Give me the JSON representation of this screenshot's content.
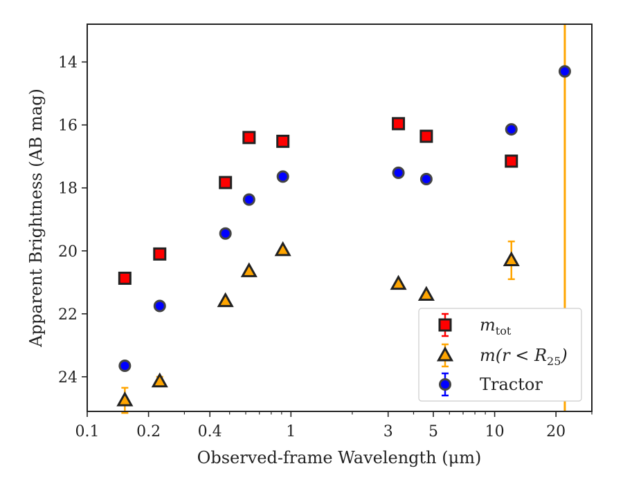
{
  "chart_data": {
    "type": "scatter",
    "x_scale": "log",
    "xlim": [
      0.1,
      30
    ],
    "ylim": [
      12.8,
      25.1
    ],
    "y_inverted": true,
    "grid": false,
    "xlabel": "Observed-frame Wavelength (μm)",
    "ylabel": "Apparent Brightness (AB mag)",
    "x_ticks": [
      {
        "value": 0.1,
        "label": "0.1"
      },
      {
        "value": 0.2,
        "label": "0.2"
      },
      {
        "value": 0.4,
        "label": "0.4"
      },
      {
        "value": 1,
        "label": "1"
      },
      {
        "value": 3,
        "label": "3"
      },
      {
        "value": 5,
        "label": "5"
      },
      {
        "value": 10,
        "label": "10"
      },
      {
        "value": 20,
        "label": "20"
      }
    ],
    "y_ticks": [
      {
        "value": 14,
        "label": "14"
      },
      {
        "value": 16,
        "label": "16"
      },
      {
        "value": 18,
        "label": "18"
      },
      {
        "value": 20,
        "label": "20"
      },
      {
        "value": 22,
        "label": "22"
      },
      {
        "value": 24,
        "label": "24"
      }
    ],
    "legend_position": "lower-right",
    "series": [
      {
        "key": "mtot",
        "name_main": "m",
        "name_sub": "tot",
        "marker": "square",
        "color": "#ff0000",
        "edge_color": "#222222",
        "error_color": "#ff0000",
        "points": [
          {
            "x": 0.153,
            "y": 20.87,
            "err": 0.05
          },
          {
            "x": 0.227,
            "y": 20.1,
            "err": 0.05
          },
          {
            "x": 0.477,
            "y": 17.83,
            "err": 0.03
          },
          {
            "x": 0.623,
            "y": 16.4,
            "err": 0.03
          },
          {
            "x": 0.913,
            "y": 16.52,
            "err": 0.03
          },
          {
            "x": 3.37,
            "y": 15.96,
            "err": 0.03
          },
          {
            "x": 4.62,
            "y": 16.36,
            "err": 0.03
          },
          {
            "x": 12.08,
            "y": 17.15,
            "err": 0.05
          }
        ]
      },
      {
        "key": "mr25",
        "name_main": "m(r < R",
        "name_sub": "25",
        "name_tail": ")",
        "marker": "triangle",
        "color": "#ffa500",
        "edge_color": "#222222",
        "error_color": "#ffa500",
        "points": [
          {
            "x": 0.153,
            "y": 24.75,
            "err": 0.4
          },
          {
            "x": 0.227,
            "y": 24.15,
            "err": 0.15
          },
          {
            "x": 0.477,
            "y": 21.6,
            "err": 0.05
          },
          {
            "x": 0.623,
            "y": 20.65,
            "err": 0.05
          },
          {
            "x": 0.913,
            "y": 19.98,
            "err": 0.05
          },
          {
            "x": 3.37,
            "y": 21.05,
            "err": 0.05
          },
          {
            "x": 4.62,
            "y": 21.4,
            "err": 0.05
          },
          {
            "x": 12.08,
            "y": 20.3,
            "err": 0.6
          },
          {
            "x": 22.1,
            "y": null,
            "err": null,
            "note": "vertical error bar spanning full axis"
          }
        ]
      },
      {
        "key": "tractor",
        "name_main": "Tractor",
        "marker": "circle",
        "color": "#0000ff",
        "edge_color": "#444444",
        "error_color": "#0000ff",
        "points": [
          {
            "x": 0.153,
            "y": 23.65,
            "err": 0.05
          },
          {
            "x": 0.227,
            "y": 21.75,
            "err": 0.05
          },
          {
            "x": 0.477,
            "y": 19.45,
            "err": 0.03
          },
          {
            "x": 0.623,
            "y": 18.37,
            "err": 0.03
          },
          {
            "x": 0.913,
            "y": 17.64,
            "err": 0.03
          },
          {
            "x": 3.37,
            "y": 17.52,
            "err": 0.03
          },
          {
            "x": 4.62,
            "y": 17.72,
            "err": 0.03
          },
          {
            "x": 12.08,
            "y": 16.14,
            "err": 0.03
          },
          {
            "x": 22.1,
            "y": 14.3,
            "err": 0.05
          }
        ]
      }
    ]
  }
}
